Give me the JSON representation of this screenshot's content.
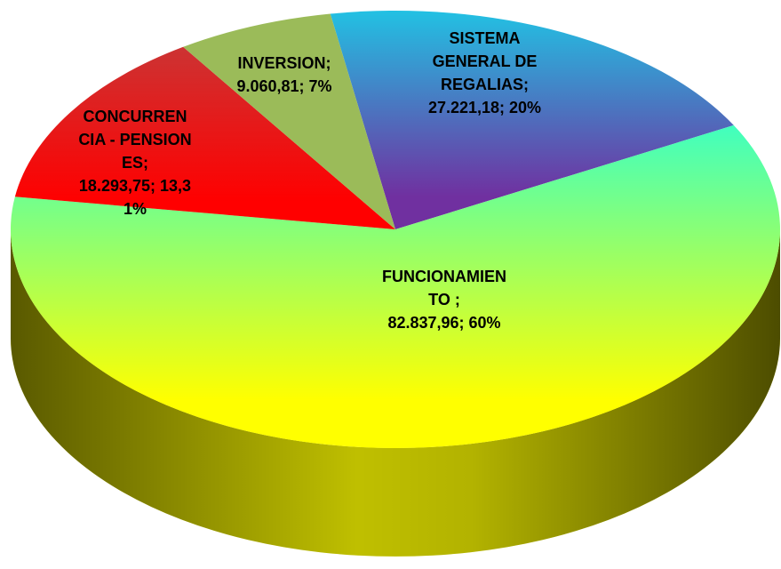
{
  "chart_data": {
    "type": "pie3d",
    "categories": [
      "SISTEMA GENERAL DE REGALIAS;",
      "FUNCIONAMIENTO ;",
      "CONCURRENCIA - PENSIONES;",
      "INVERSION;"
    ],
    "values": [
      27221.18,
      82837.96,
      18293.75,
      9060.81
    ],
    "value_labels": [
      "27.221,18;",
      "82.837,96;",
      "18.293,75;",
      "9.060,81;"
    ],
    "percents": [
      20,
      60,
      13.31,
      7
    ],
    "percent_labels": [
      "20%",
      "60%",
      "13,31%",
      "7%"
    ],
    "colors": [
      "#7030a0",
      "#ffff00",
      "#ff0000",
      "#9bbb59"
    ]
  }
}
